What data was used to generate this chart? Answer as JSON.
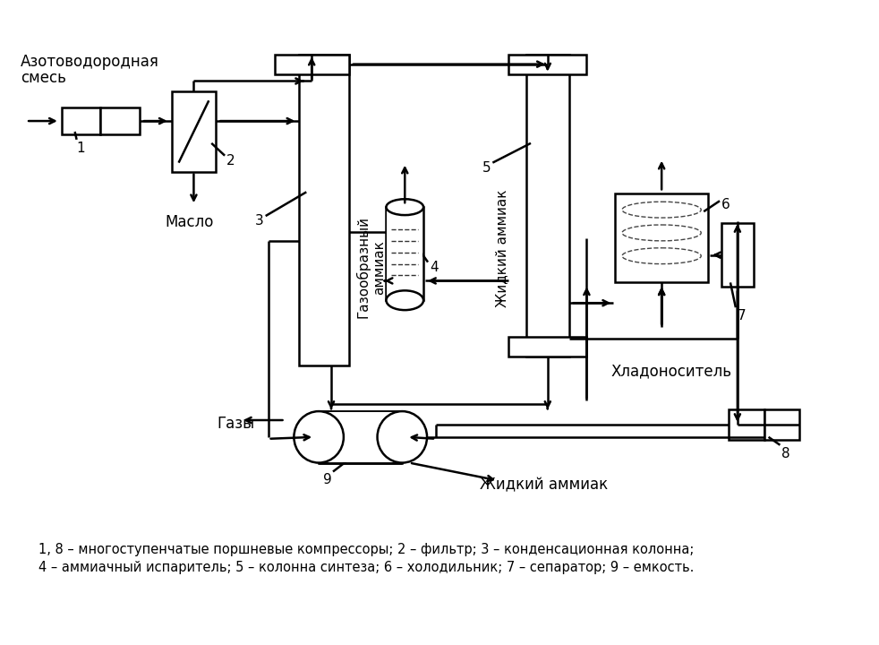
{
  "bg_color": "#ffffff",
  "lc": "#000000",
  "lw": 1.8,
  "label_title1": "Азотоводородная",
  "label_title2": "смесь",
  "label_maslo": "Масло",
  "label_gazy": "Газы",
  "label_zhidky_bottom": "Жидкий аммиак",
  "label_gazobrazny": "Газообразный\nаммиак",
  "label_zhidky_vert": "Жидкий аммиак",
  "label_khladonositel": "Хладоноситель",
  "legend_line1": "1, 8 – многоступенчатые поршневые компрессоры; 2 – фильтр; 3 – конденсационная колонна;",
  "legend_line2": "4 – аммиачный испаритель; 5 – колонна синтеза; 6 – холодильник; 7 – сепаратор; 9 – емкость.",
  "nums": [
    "1",
    "2",
    "3",
    "4",
    "5",
    "6",
    "7",
    "8",
    "9"
  ]
}
